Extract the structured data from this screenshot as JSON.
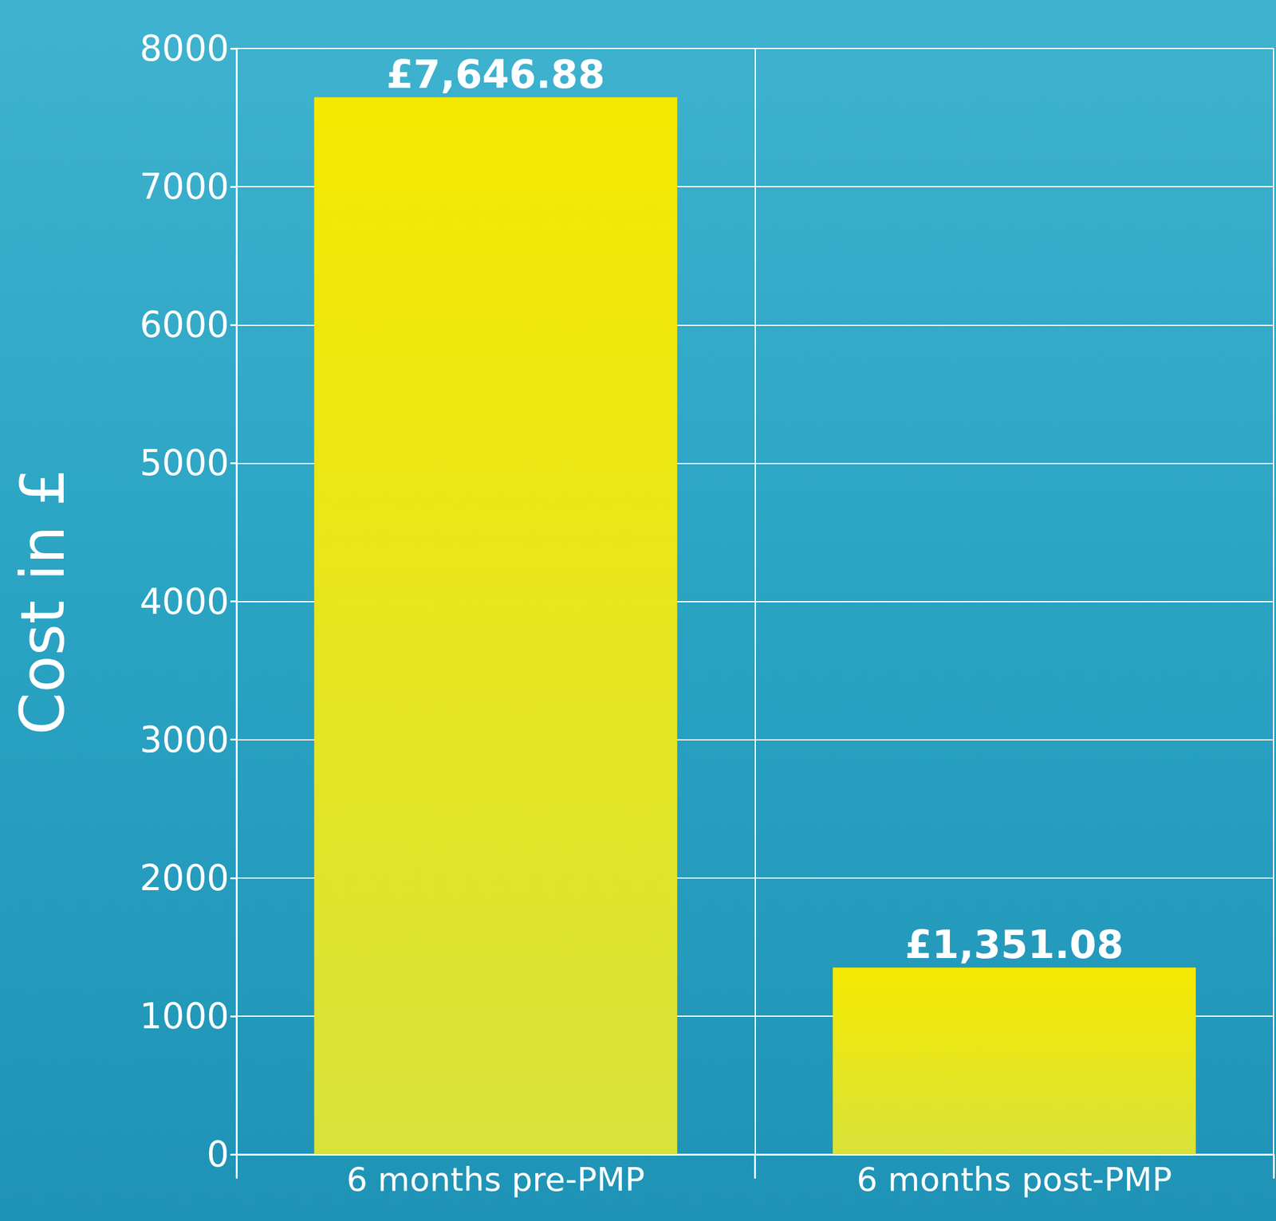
{
  "chart_data": {
    "type": "bar",
    "y_label": "Cost in £",
    "categories": [
      "6 months pre-PMP",
      "6 months post-PMP"
    ],
    "values": [
      7646.88,
      1351.08
    ],
    "value_labels": [
      "£7,646.88",
      "£1,351.08"
    ],
    "color": "#f5e900",
    "ylim": [
      0,
      8000
    ],
    "yticks": [
      0,
      1000,
      2000,
      3000,
      4000,
      5000,
      6000,
      7000,
      8000
    ],
    "grid": true,
    "data_labels": true
  }
}
